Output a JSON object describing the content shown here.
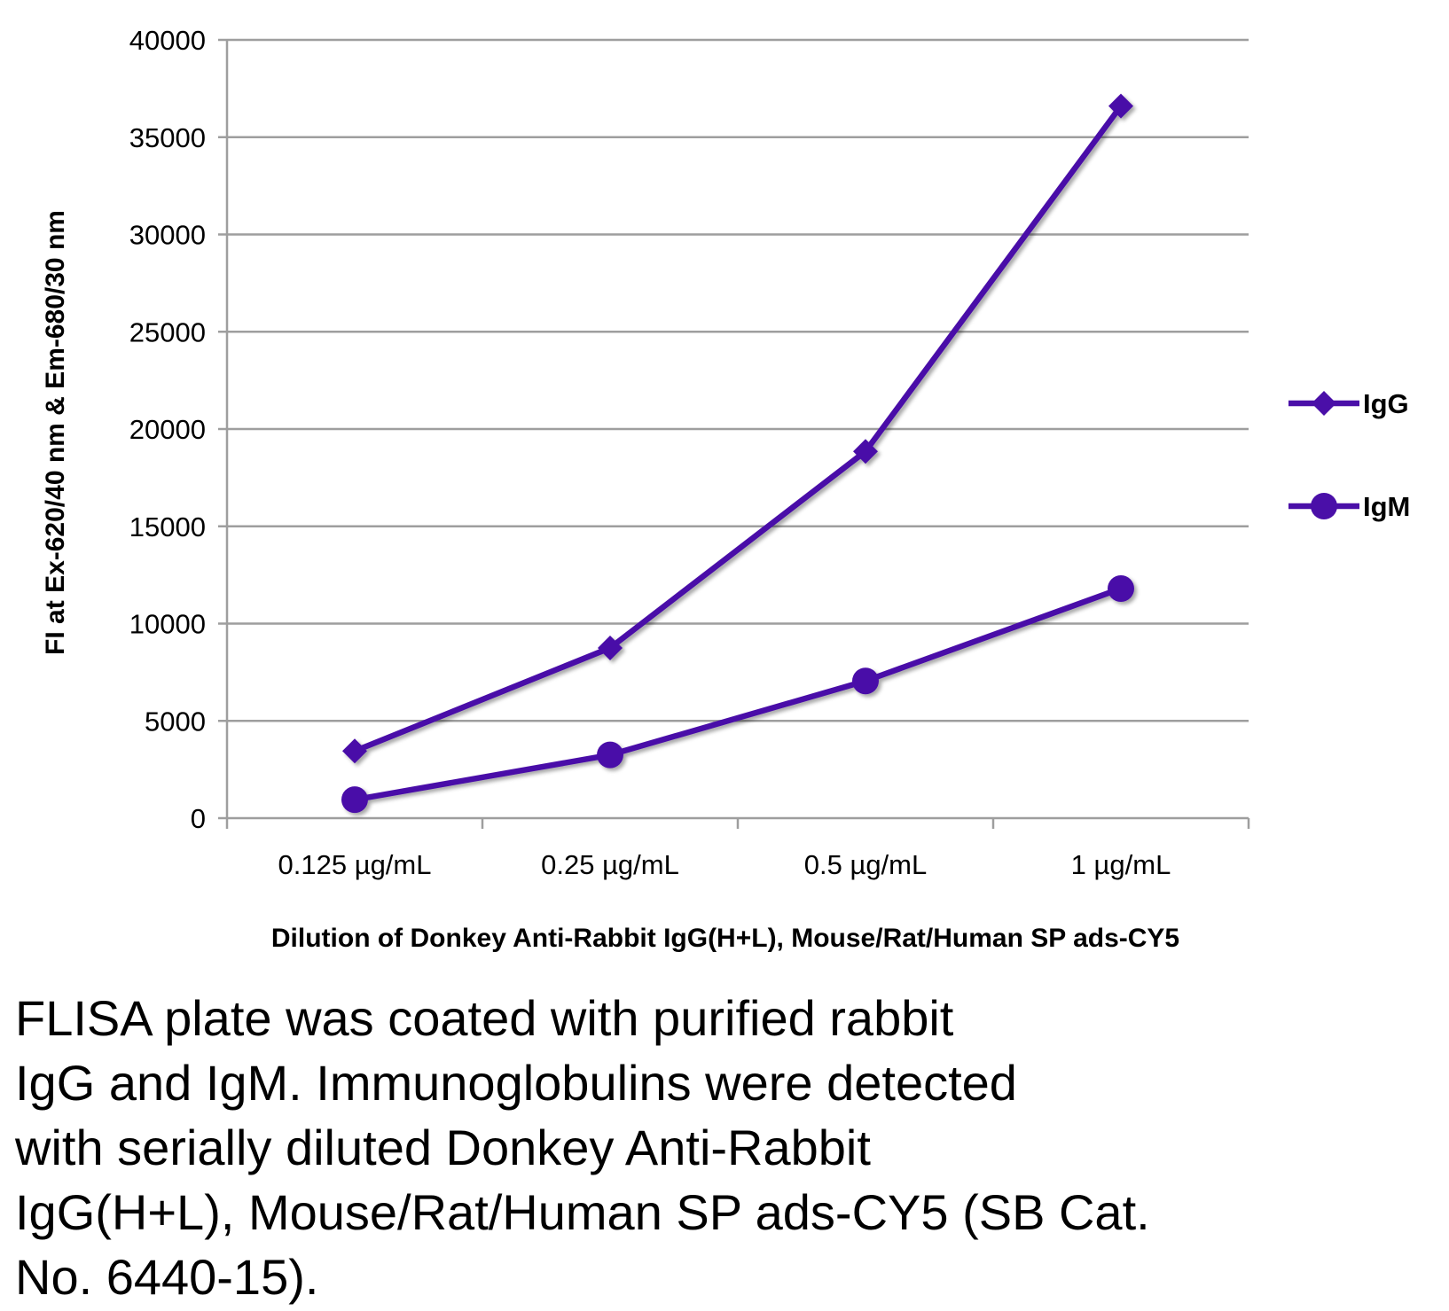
{
  "chart_data": {
    "type": "line",
    "categories": [
      "0.125 µg/mL",
      "0.25 µg/mL",
      "0.5 µg/mL",
      "1 µg/mL"
    ],
    "series": [
      {
        "name": "IgG",
        "marker": "diamond",
        "values": [
          3450,
          8750,
          18850,
          36600
        ]
      },
      {
        "name": "IgM",
        "marker": "circle",
        "values": [
          950,
          3250,
          7050,
          11800
        ]
      }
    ],
    "title": "",
    "xlabel": "Dilution of Donkey Anti-Rabbit IgG(H+L), Mouse/Rat/Human SP ads-CY5",
    "ylabel": "FI at Ex-620/40 nm & Em-680/30 nm",
    "ylim": [
      0,
      40000
    ],
    "yticks": [
      "0",
      "5000",
      "10000",
      "15000",
      "20000",
      "25000",
      "30000",
      "35000",
      "40000"
    ],
    "grid": true,
    "legend": "right",
    "colors": {
      "series": "#4A0FA8",
      "grid": "#9E9E9E",
      "axis": "#9E9E9E"
    }
  },
  "caption": "FLISA plate was coated with purified rabbit\nIgG and IgM.  Immunoglobulins were detected\nwith serially diluted Donkey Anti-Rabbit\nIgG(H+L), Mouse/Rat/Human SP ads-CY5 (SB Cat.\nNo. 6440-15)."
}
